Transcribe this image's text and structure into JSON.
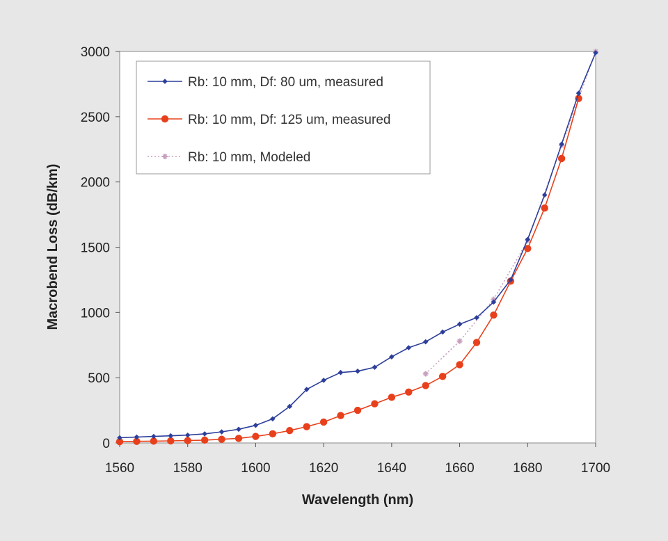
{
  "chart_data": {
    "type": "line",
    "title": "",
    "xlabel": "Wavelength (nm)",
    "ylabel": "Macrobend Loss (dB/km)",
    "xlim": [
      1560,
      1700
    ],
    "ylim": [
      0,
      3000
    ],
    "xticks": [
      1560,
      1580,
      1600,
      1620,
      1640,
      1660,
      1680,
      1700
    ],
    "yticks": [
      0,
      500,
      1000,
      1500,
      2000,
      2500,
      3000
    ],
    "grid": false,
    "legend_position": "top-left",
    "series": [
      {
        "name": "Rb: 10 mm, Df: 80 um, measured",
        "color": "#2d3f9a",
        "marker": "diamond",
        "line": "solid",
        "x": [
          1560,
          1565,
          1570,
          1575,
          1580,
          1585,
          1590,
          1595,
          1600,
          1605,
          1610,
          1615,
          1620,
          1625,
          1630,
          1635,
          1640,
          1645,
          1650,
          1655,
          1660,
          1665,
          1670,
          1675,
          1680,
          1685,
          1690,
          1695,
          1700
        ],
        "y": [
          40,
          45,
          50,
          55,
          60,
          70,
          85,
          105,
          135,
          185,
          280,
          410,
          480,
          540,
          550,
          580,
          660,
          730,
          775,
          850,
          910,
          960,
          1080,
          1250,
          1560,
          1900,
          2290,
          2680,
          2990
        ]
      },
      {
        "name": "Rb: 10 mm, Df: 125 um, measured",
        "color": "#e8401c",
        "marker": "circle",
        "line": "solid",
        "x": [
          1560,
          1565,
          1570,
          1575,
          1580,
          1585,
          1590,
          1595,
          1600,
          1605,
          1610,
          1615,
          1620,
          1625,
          1630,
          1635,
          1640,
          1645,
          1650,
          1655,
          1660,
          1665,
          1670,
          1675,
          1680,
          1685,
          1690,
          1695
        ],
        "y": [
          10,
          12,
          14,
          16,
          18,
          22,
          28,
          35,
          50,
          70,
          95,
          125,
          160,
          210,
          250,
          300,
          350,
          390,
          440,
          510,
          600,
          770,
          980,
          1240,
          1490,
          1800,
          2180,
          2640
        ]
      },
      {
        "name": "Rb: 10 mm, Modeled",
        "color": "#c7a0bf",
        "marker": "star",
        "line": "dotted",
        "x": [
          1650,
          1660,
          1670,
          1680,
          1690,
          1700
        ],
        "y": [
          530,
          780,
          1100,
          1550,
          2280,
          3000
        ]
      }
    ]
  }
}
